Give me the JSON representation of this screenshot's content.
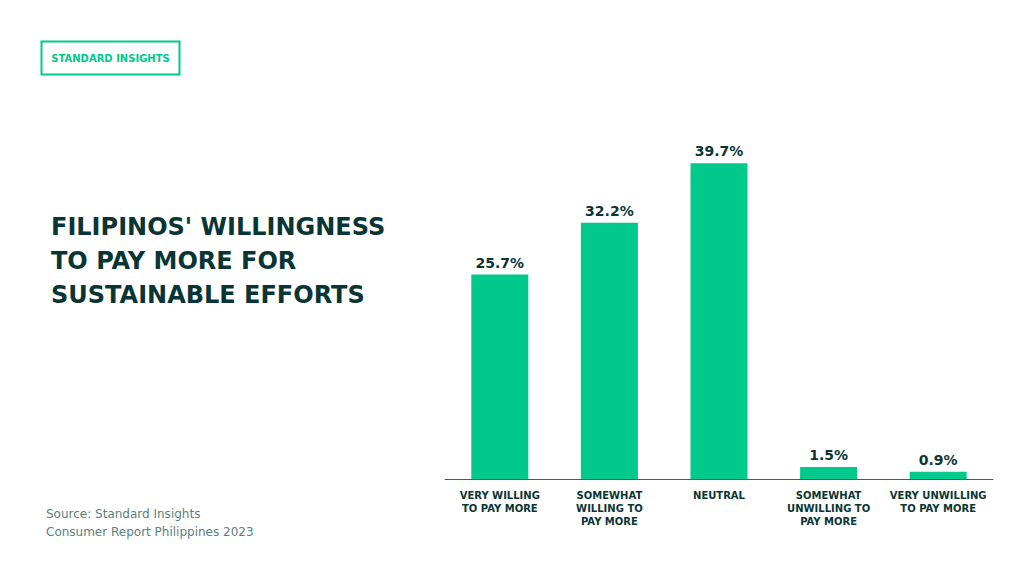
{
  "chart_data": {
    "type": "bar",
    "title": "FILIPINOS' WILLINGNESS\nTO PAY MORE FOR\nSUSTAINABLE EFFORTS",
    "annotations": [
      "Source: Standard Insights\nConsumer Report Philippines 2023",
      "STANDARD INSIGHTS"
    ],
    "categories": [
      "VERY WILLING\nTO PAY MORE",
      "SOMEWHAT\nWILLING TO\nPAY MORE",
      "NEUTRAL",
      "SOMEWHAT\nUNWILLING TO\nPAY MORE",
      "VERY UNWILLING\nTO PAY MORE"
    ],
    "values": [
      25.7,
      32.2,
      39.7,
      1.5,
      0.9
    ],
    "value_labels": [
      "25.7%",
      "32.2%",
      "39.7%",
      "1.5%",
      "0.9%"
    ],
    "data_labels": true,
    "color": "#00C98B",
    "ylim": [
      0,
      45
    ],
    "tick_labels": "x",
    "grid": false
  }
}
